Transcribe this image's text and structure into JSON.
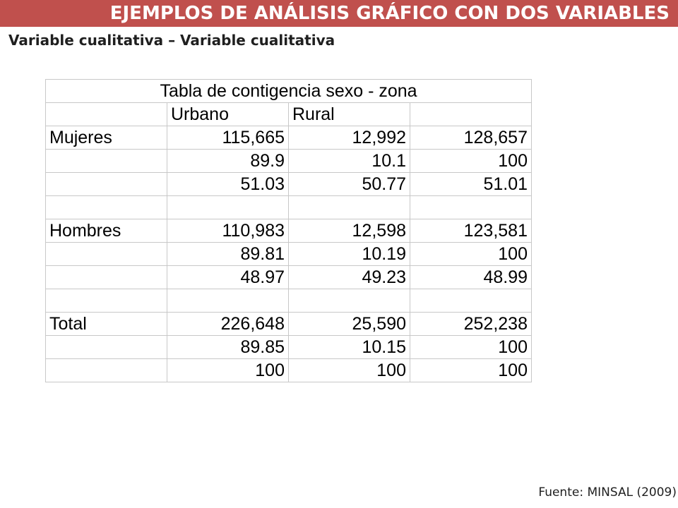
{
  "header": {
    "title": "EJEMPLOS DE ANÁLISIS GRÁFICO CON DOS VARIABLES",
    "subtitle": "Variable cualitativa – Variable cualitativa"
  },
  "table": {
    "caption": "Tabla de contigencia sexo - zona",
    "columns": [
      "",
      "Urbano",
      "Rural",
      ""
    ],
    "rows": [
      [
        "Mujeres",
        "115,665",
        "12,992",
        "128,657"
      ],
      [
        "",
        "89.9",
        "10.1",
        "100"
      ],
      [
        "",
        "51.03",
        "50.77",
        "51.01"
      ],
      [
        "",
        "",
        "",
        ""
      ],
      [
        "Hombres",
        "110,983",
        "12,598",
        "123,581"
      ],
      [
        "",
        "89.81",
        "10.19",
        "100"
      ],
      [
        "",
        "48.97",
        "49.23",
        "48.99"
      ],
      [
        "",
        "",
        "",
        ""
      ],
      [
        "Total",
        "226,648",
        "25,590",
        "252,238"
      ],
      [
        "",
        "89.85",
        "10.15",
        "100"
      ],
      [
        "",
        "100",
        "100",
        "100"
      ]
    ]
  },
  "footer": {
    "source": "Fuente: MINSAL (2009)"
  },
  "colors": {
    "title_bar": "#c0504d",
    "title_text": "#ffffff",
    "grid": "#c8c8c8"
  }
}
